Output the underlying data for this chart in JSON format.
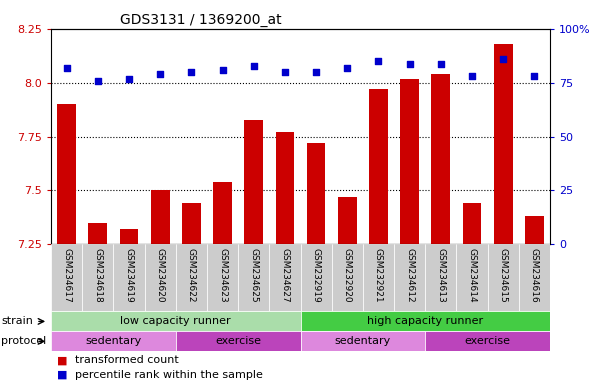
{
  "title": "GDS3131 / 1369200_at",
  "samples": [
    "GSM234617",
    "GSM234618",
    "GSM234619",
    "GSM234620",
    "GSM234622",
    "GSM234623",
    "GSM234625",
    "GSM234627",
    "GSM232919",
    "GSM232920",
    "GSM232921",
    "GSM234612",
    "GSM234613",
    "GSM234614",
    "GSM234615",
    "GSM234616"
  ],
  "bar_values": [
    7.9,
    7.35,
    7.32,
    7.5,
    7.44,
    7.54,
    7.83,
    7.77,
    7.72,
    7.47,
    7.97,
    8.02,
    8.04,
    7.44,
    8.18,
    7.38
  ],
  "dot_values": [
    82,
    76,
    77,
    79,
    80,
    81,
    83,
    80,
    80,
    82,
    85,
    84,
    84,
    78,
    86,
    78
  ],
  "ylim_left": [
    7.25,
    8.25
  ],
  "ylim_right": [
    0,
    100
  ],
  "yticks_left": [
    7.25,
    7.5,
    7.75,
    8.0,
    8.25
  ],
  "yticks_right": [
    0,
    25,
    50,
    75,
    100
  ],
  "grid_values": [
    7.5,
    7.75,
    8.0
  ],
  "bar_color": "#cc0000",
  "dot_color": "#0000cc",
  "strain_groups": [
    {
      "label": "low capacity runner",
      "start": 0,
      "end": 8,
      "color": "#aaddaa"
    },
    {
      "label": "high capacity runner",
      "start": 8,
      "end": 16,
      "color": "#44cc44"
    }
  ],
  "protocol_groups": [
    {
      "label": "sedentary",
      "start": 0,
      "end": 4,
      "color": "#dd88dd"
    },
    {
      "label": "exercise",
      "start": 4,
      "end": 8,
      "color": "#bb44bb"
    },
    {
      "label": "sedentary",
      "start": 8,
      "end": 12,
      "color": "#dd88dd"
    },
    {
      "label": "exercise",
      "start": 12,
      "end": 16,
      "color": "#bb44bb"
    }
  ],
  "strain_label": "strain",
  "protocol_label": "protocol",
  "legend_bar_label": "transformed count",
  "legend_dot_label": "percentile rank within the sample",
  "bg_color": "#ffffff",
  "tick_label_color_left": "#cc0000",
  "tick_label_color_right": "#0000cc",
  "title_color": "#000000",
  "sample_bg_color": "#cccccc"
}
